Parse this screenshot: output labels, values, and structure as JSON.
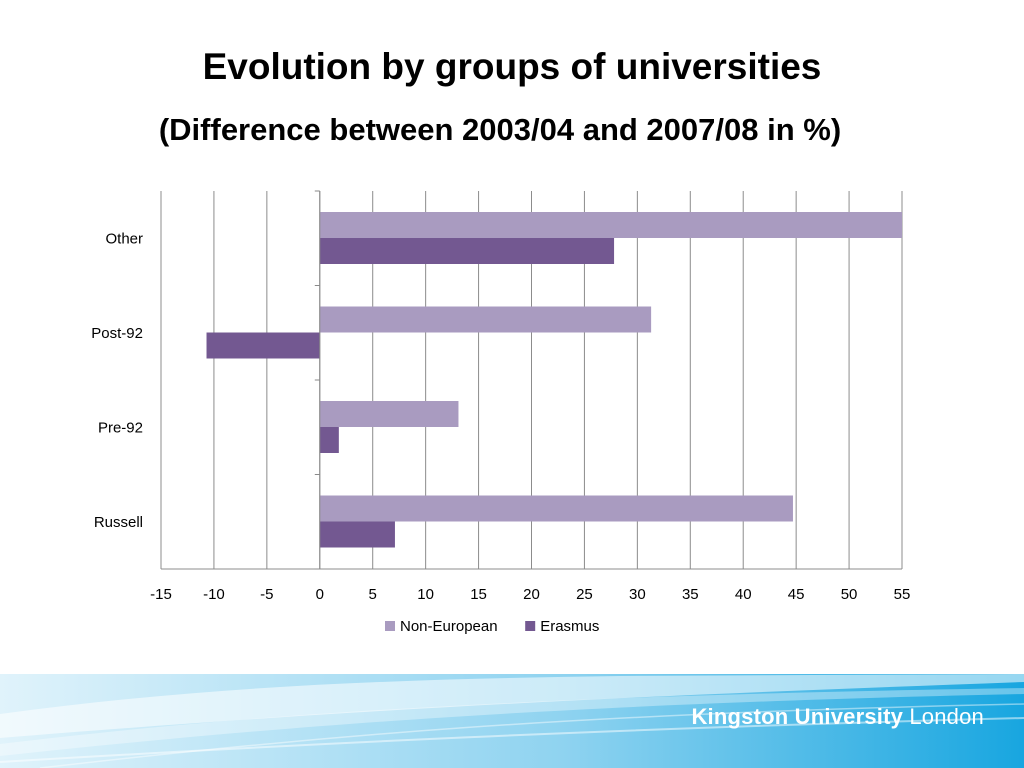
{
  "slide": {
    "title": "Evolution by groups of universities",
    "subtitle": "(Difference between 2003/04 and 2007/08 in %)"
  },
  "chart_data": {
    "type": "bar",
    "orientation": "horizontal",
    "categories": [
      "Other",
      "Post-92",
      "Pre-92",
      "Russell"
    ],
    "series": [
      {
        "name": "Non-European",
        "values": [
          55,
          31.3,
          13.1,
          44.7
        ],
        "color": "#a99bc0"
      },
      {
        "name": "Erasmus",
        "values": [
          27.8,
          -10.7,
          1.8,
          7.1
        ],
        "color": "#735891"
      }
    ],
    "xlim": [
      -15,
      55
    ],
    "xticks": [
      "-15",
      "-10",
      "-5",
      "0",
      "5",
      "10",
      "15",
      "20",
      "25",
      "30",
      "35",
      "40",
      "45",
      "50",
      "55"
    ],
    "grid": true,
    "legend": "bottom"
  },
  "footer": {
    "brand_bold": "Kingston University",
    "brand_light": "London",
    "colors": {
      "wave_light": "#e0f3fb",
      "wave_dark": "#18a6e0"
    }
  }
}
